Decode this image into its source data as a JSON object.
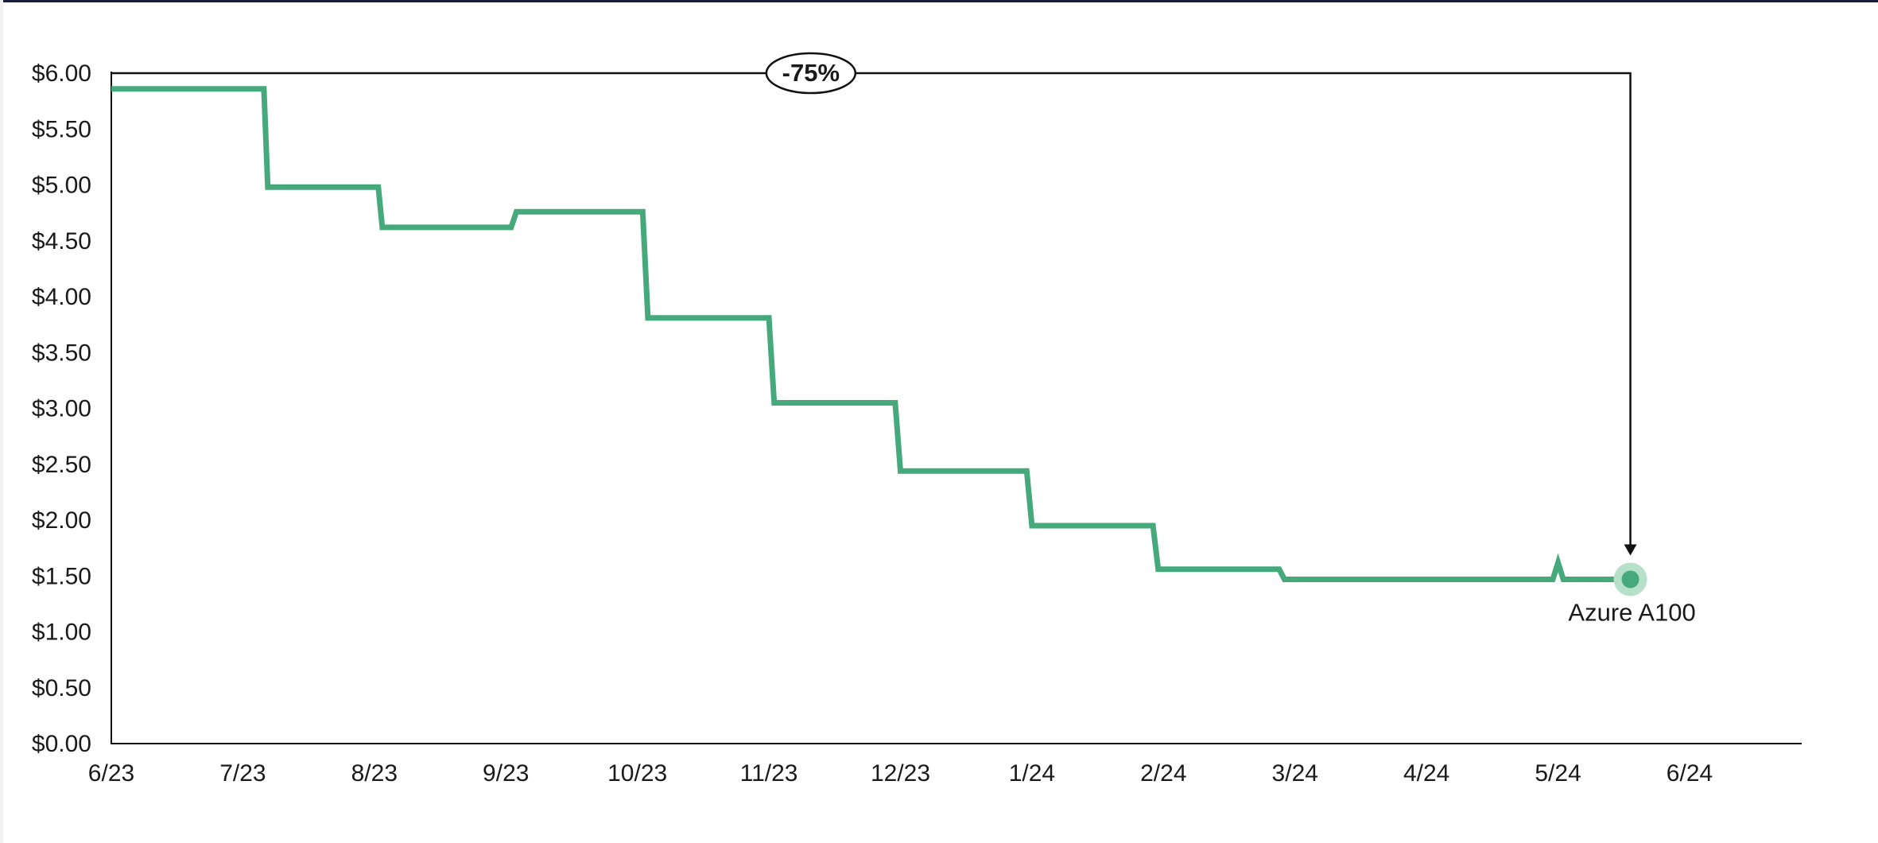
{
  "chart_data": {
    "type": "line",
    "step": true,
    "title": "",
    "xlabel": "",
    "ylabel": "",
    "x_tick_labels": [
      "6/23",
      "7/23",
      "8/23",
      "9/23",
      "10/23",
      "11/23",
      "12/23",
      "1/24",
      "2/24",
      "3/24",
      "4/24",
      "5/24",
      "6/24"
    ],
    "y_tick_labels": [
      "$0.00",
      "$0.50",
      "$1.00",
      "$1.50",
      "$2.00",
      "$2.50",
      "$3.00",
      "$3.50",
      "$4.00",
      "$4.50",
      "$5.00",
      "$5.50",
      "$6.00"
    ],
    "xlim": [
      0,
      12
    ],
    "ylim": [
      0,
      6
    ],
    "grid": false,
    "series": [
      {
        "name": "Azure A100",
        "color": "#45a97c",
        "points": [
          [
            0.0,
            5.86
          ],
          [
            1.16,
            5.86
          ],
          [
            1.19,
            4.98
          ],
          [
            2.03,
            4.98
          ],
          [
            2.06,
            4.62
          ],
          [
            3.04,
            4.62
          ],
          [
            3.08,
            4.76
          ],
          [
            4.04,
            4.76
          ],
          [
            4.08,
            3.81
          ],
          [
            5.0,
            3.81
          ],
          [
            5.04,
            3.05
          ],
          [
            5.96,
            3.05
          ],
          [
            6.0,
            2.44
          ],
          [
            6.96,
            2.44
          ],
          [
            7.0,
            1.95
          ],
          [
            7.92,
            1.95
          ],
          [
            7.96,
            1.56
          ],
          [
            8.88,
            1.56
          ],
          [
            8.92,
            1.47
          ],
          [
            10.96,
            1.47
          ],
          [
            11.0,
            1.62
          ],
          [
            11.04,
            1.47
          ],
          [
            11.55,
            1.47
          ]
        ]
      }
    ],
    "annotations": {
      "change_label": "-75%",
      "end_label": "Azure A100",
      "bracket_start": [
        0.0,
        6.0
      ],
      "bracket_end": [
        11.55,
        1.47
      ]
    }
  },
  "colors": {
    "line": "#45a97c",
    "marker_halo": "#b7e0cb",
    "axis": "#111111",
    "text": "#1a1a1a"
  }
}
